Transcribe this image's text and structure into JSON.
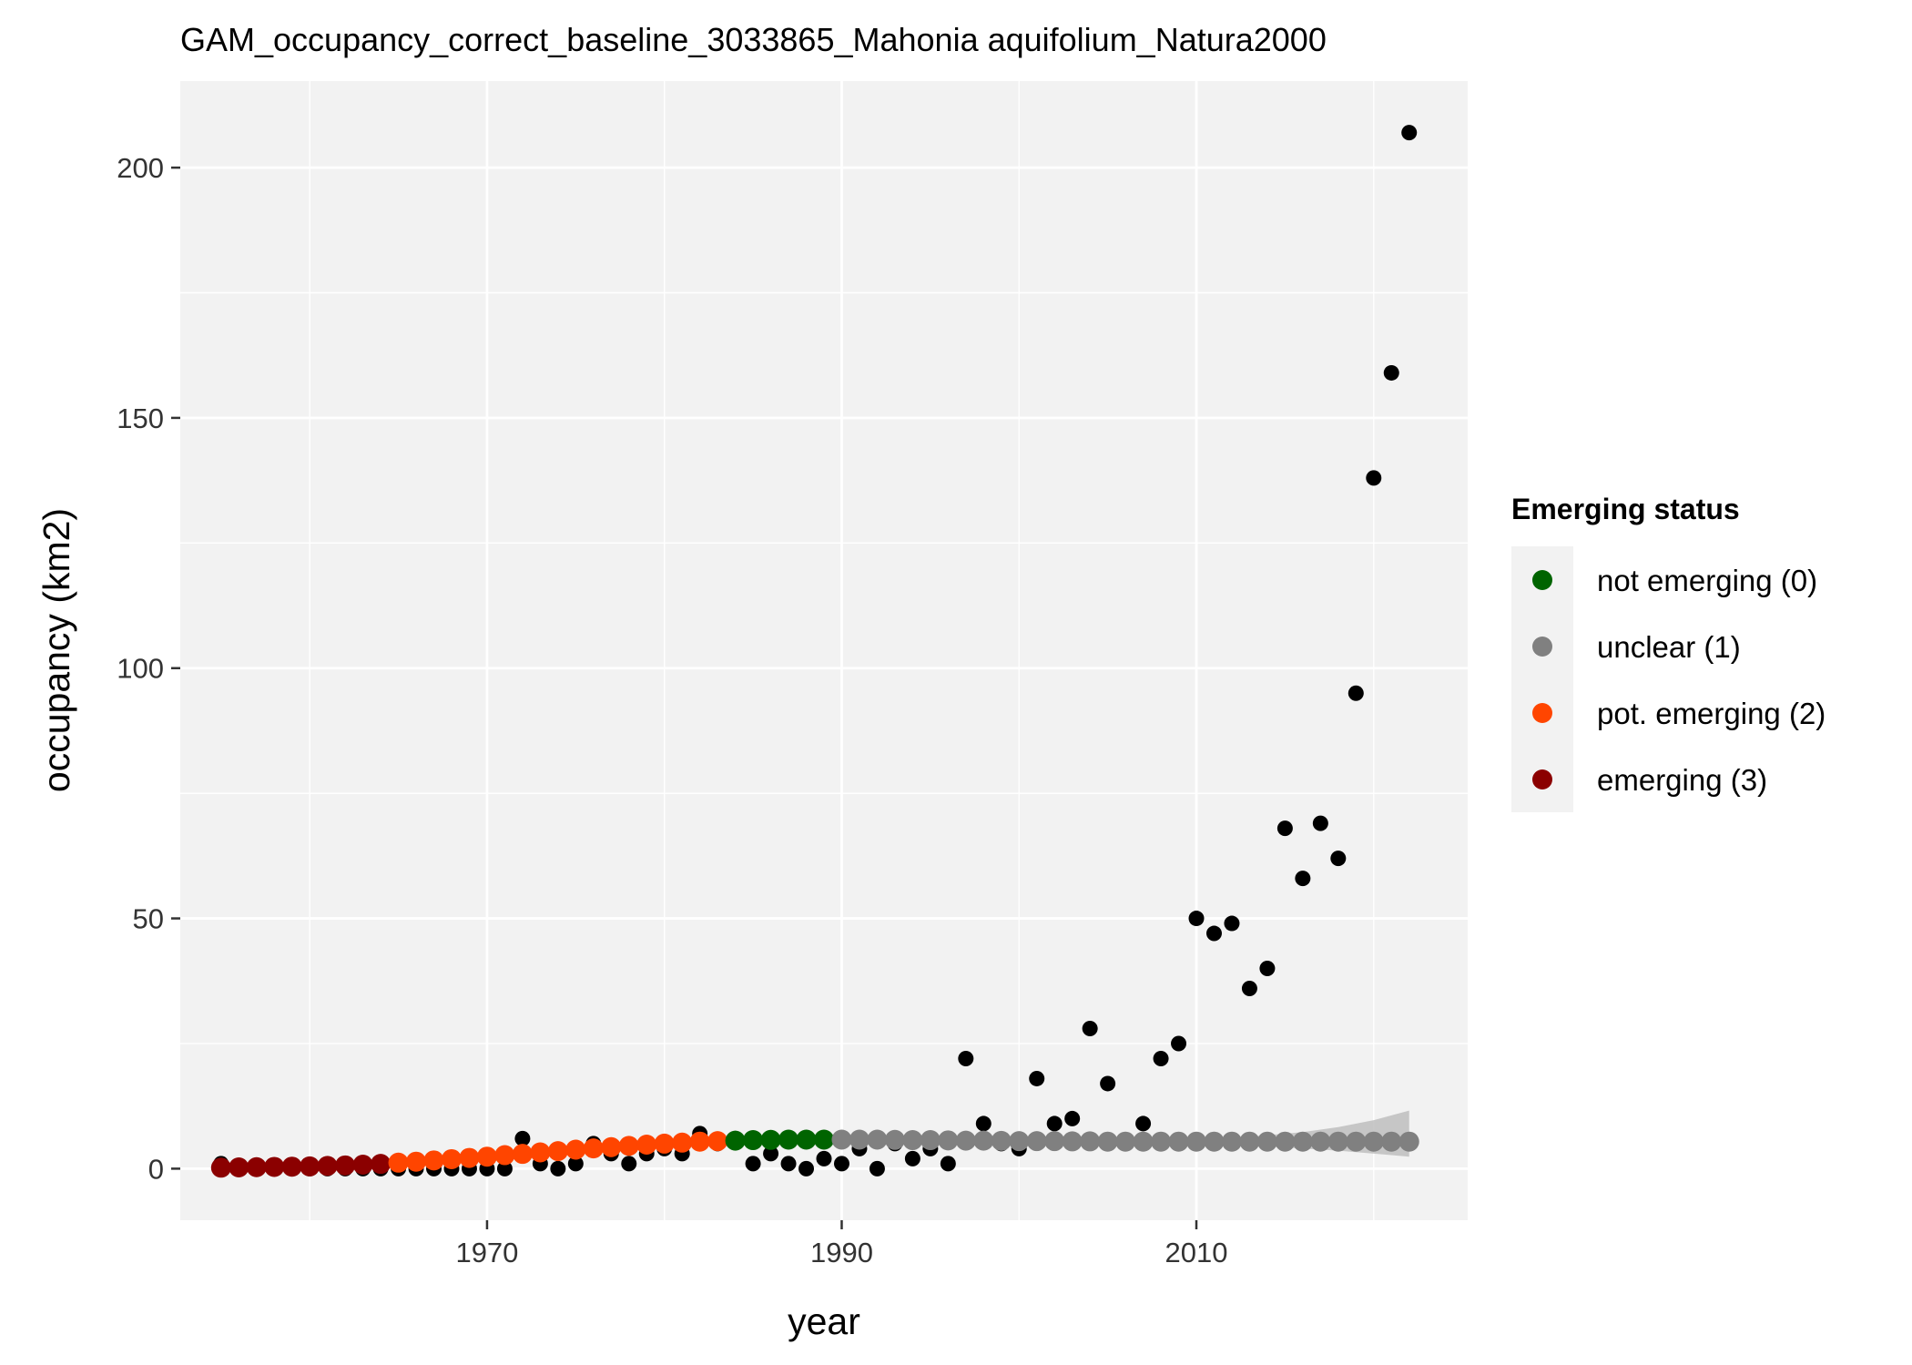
{
  "chart_data": {
    "type": "scatter",
    "title": "GAM_occupancy_correct_baseline_3033865_Mahonia aquifolium_Natura2000",
    "xlabel": "year",
    "ylabel": "occupancy (km2)",
    "xlim": [
      1952.7,
      2025.3
    ],
    "ylim": [
      -10.3,
      217.3
    ],
    "x_ticks": [
      1970,
      1990,
      2010
    ],
    "x_tick_labels": [
      "1970",
      "1990",
      "2010"
    ],
    "y_ticks": [
      0,
      50,
      100,
      150,
      200
    ],
    "y_tick_labels": [
      "0",
      "50",
      "100",
      "150",
      "200"
    ],
    "grid": true,
    "legend": {
      "title": "Emerging status",
      "position": "right",
      "entries": [
        {
          "label": "not emerging (0)",
          "color": "#006400"
        },
        {
          "label": "unclear (1)",
          "color": "#808080"
        },
        {
          "label": "pot. emerging (2)",
          "color": "#FF4500"
        },
        {
          "label": "emerging (3)",
          "color": "#8B0000"
        }
      ]
    },
    "colors": {
      "panel_background": "#F2F2F2",
      "grid": "#FFFFFF",
      "observed_points": "#000000",
      "confidence_band": "#BEBEBE"
    },
    "observed": {
      "x": [
        1955,
        1956,
        1957,
        1958,
        1959,
        1960,
        1961,
        1962,
        1963,
        1964,
        1965,
        1966,
        1967,
        1968,
        1969,
        1970,
        1971,
        1972,
        1973,
        1974,
        1975,
        1976,
        1977,
        1978,
        1979,
        1980,
        1981,
        1982,
        1983,
        1984,
        1985,
        1986,
        1987,
        1988,
        1989,
        1990,
        1991,
        1992,
        1993,
        1994,
        1995,
        1996,
        1997,
        1998,
        1999,
        2000,
        2001,
        2002,
        2003,
        2004,
        2005,
        2006,
        2007,
        2008,
        2009,
        2010,
        2011,
        2012,
        2013,
        2014,
        2015,
        2016,
        2017,
        2018,
        2019,
        2020,
        2021,
        2022
      ],
      "y": [
        1,
        0,
        0,
        0,
        0,
        0,
        0,
        0,
        0,
        0,
        0,
        0,
        0,
        0,
        0,
        0,
        0,
        6,
        1,
        0,
        1,
        5,
        3,
        1,
        3,
        4,
        3,
        7,
        5,
        6,
        1,
        3,
        1,
        0,
        2,
        1,
        4,
        0,
        5,
        2,
        4,
        1,
        22,
        9,
        5,
        4,
        18,
        9,
        10,
        28,
        17,
        5,
        9,
        22,
        25,
        50,
        47,
        49,
        36,
        40,
        68,
        58,
        69,
        62,
        95,
        138,
        159,
        207
      ]
    },
    "fitted": {
      "x": [
        1955,
        1956,
        1957,
        1958,
        1959,
        1960,
        1961,
        1962,
        1963,
        1964,
        1965,
        1966,
        1967,
        1968,
        1969,
        1970,
        1971,
        1972,
        1973,
        1974,
        1975,
        1976,
        1977,
        1978,
        1979,
        1980,
        1981,
        1982,
        1983,
        1984,
        1985,
        1986,
        1987,
        1988,
        1989,
        1990,
        1991,
        1992,
        1993,
        1994,
        1995,
        1996,
        1997,
        1998,
        1999,
        2000,
        2001,
        2002,
        2003,
        2004,
        2005,
        2006,
        2007,
        2008,
        2009,
        2010,
        2011,
        2012,
        2013,
        2014,
        2015,
        2016,
        2017,
        2018,
        2019,
        2020,
        2021,
        2022
      ],
      "y": [
        0.2,
        0.25,
        0.3,
        0.35,
        0.4,
        0.45,
        0.55,
        0.65,
        0.8,
        0.95,
        1.2,
        1.4,
        1.65,
        1.9,
        2.15,
        2.4,
        2.7,
        2.95,
        3.25,
        3.5,
        3.8,
        4.05,
        4.3,
        4.55,
        4.8,
        5.0,
        5.2,
        5.4,
        5.5,
        5.6,
        5.7,
        5.75,
        5.8,
        5.8,
        5.8,
        5.8,
        5.8,
        5.8,
        5.75,
        5.7,
        5.7,
        5.65,
        5.6,
        5.6,
        5.55,
        5.5,
        5.5,
        5.5,
        5.45,
        5.45,
        5.4,
        5.4,
        5.4,
        5.4,
        5.4,
        5.4,
        5.4,
        5.4,
        5.4,
        5.4,
        5.4,
        5.4,
        5.4,
        5.4,
        5.4,
        5.4,
        5.4,
        5.4
      ],
      "status": [
        3,
        3,
        3,
        3,
        3,
        3,
        3,
        3,
        3,
        3,
        2,
        2,
        2,
        2,
        2,
        2,
        2,
        2,
        2,
        2,
        2,
        2,
        2,
        2,
        2,
        2,
        2,
        2,
        2,
        0,
        0,
        0,
        0,
        0,
        0,
        1,
        1,
        1,
        1,
        1,
        1,
        1,
        1,
        1,
        1,
        1,
        1,
        1,
        1,
        1,
        1,
        1,
        1,
        1,
        1,
        1,
        1,
        1,
        1,
        1,
        1,
        1,
        1,
        1,
        1,
        1,
        1,
        1
      ]
    },
    "confidence_band": {
      "x": [
        1990,
        1995,
        2000,
        2005,
        2010,
        2013,
        2016,
        2018,
        2020,
        2022
      ],
      "lower": [
        5.8,
        5.7,
        5.5,
        5.4,
        5.0,
        4.6,
        4.0,
        3.6,
        3.0,
        2.4
      ],
      "upper": [
        5.8,
        5.7,
        5.6,
        5.6,
        5.9,
        6.4,
        7.3,
        8.3,
        9.7,
        11.6
      ]
    }
  }
}
